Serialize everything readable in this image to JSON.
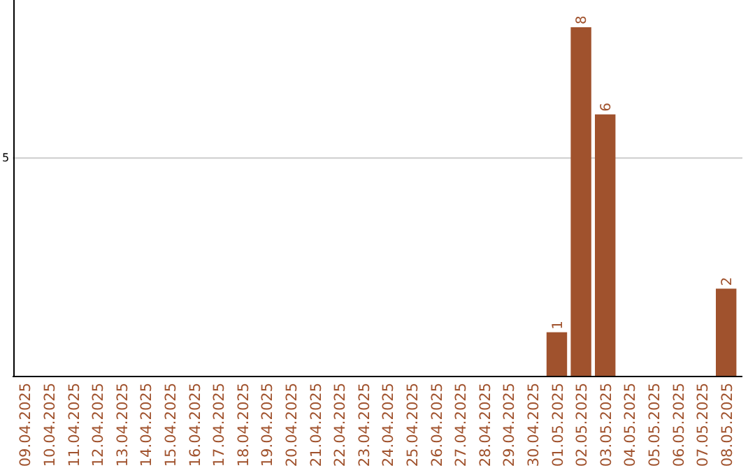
{
  "chart_data": {
    "type": "bar",
    "categories": [
      "09.04.2025",
      "10.04.2025",
      "11.04.2025",
      "12.04.2025",
      "13.04.2025",
      "14.04.2025",
      "15.04.2025",
      "16.04.2025",
      "17.04.2025",
      "18.04.2025",
      "19.04.2025",
      "20.04.2025",
      "21.04.2025",
      "22.04.2025",
      "23.04.2025",
      "24.04.2025",
      "25.04.2025",
      "26.04.2025",
      "27.04.2025",
      "28.04.2025",
      "29.04.2025",
      "30.04.2025",
      "01.05.2025",
      "02.05.2025",
      "03.05.2025",
      "04.05.2025",
      "05.05.2025",
      "06.05.2025",
      "07.05.2025",
      "08.05.2025"
    ],
    "values": [
      null,
      null,
      null,
      null,
      null,
      null,
      null,
      null,
      null,
      null,
      null,
      null,
      null,
      null,
      null,
      null,
      null,
      null,
      null,
      null,
      null,
      null,
      1,
      8,
      6,
      null,
      null,
      null,
      null,
      2
    ],
    "data_labels": true,
    "color": "#a0522d",
    "ylim": [
      0,
      8
    ],
    "yticks": [
      5
    ],
    "grid": "y"
  }
}
